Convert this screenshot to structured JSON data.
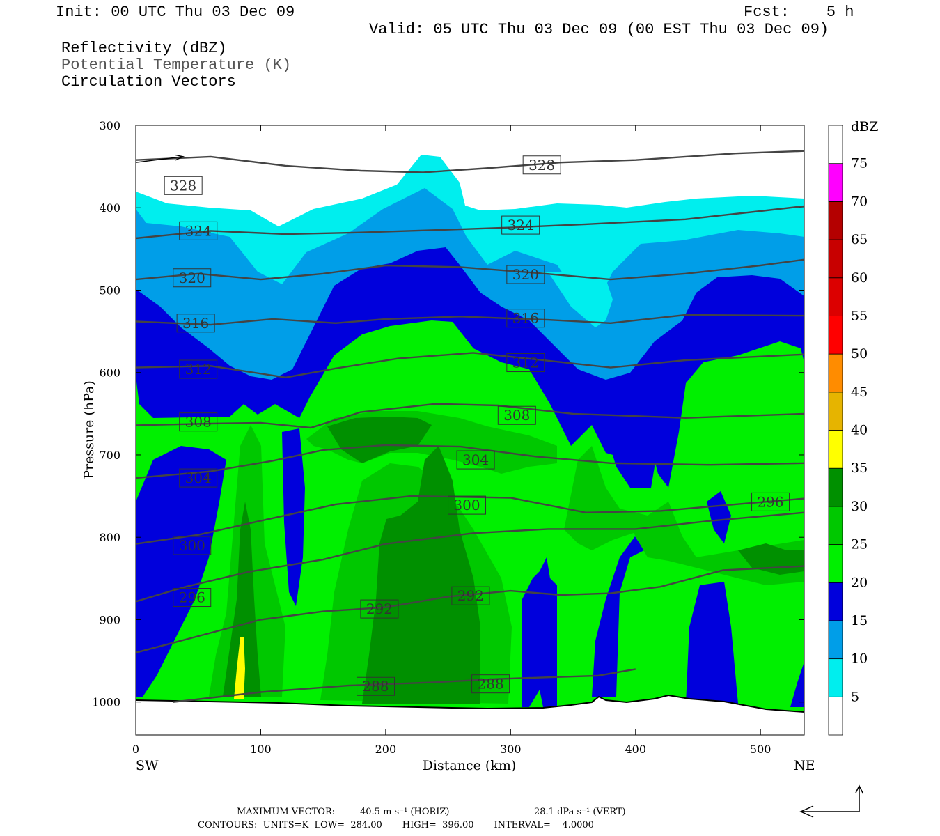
{
  "header": {
    "init": "Init: 00 UTC Thu 03 Dec 09",
    "fcst": "Fcst:    5 h",
    "valid": "Valid: 05 UTC Thu 03 Dec 09 (00 EST Thu 03 Dec 09)",
    "field1": "Reflectivity (dBZ)",
    "field2": "Potential Temperature (K)",
    "field3": "Circulation Vectors"
  },
  "footer": {
    "max_vector_label": "MAXIMUM VECTOR:",
    "max_horiz": "40.5 m s⁻¹ (HORIZ)",
    "max_vert": "28.1 dPa s⁻¹ (VERT)",
    "contours": "CONTOURS:  UNITS=K  LOW=  284.00       HIGH=  396.00       INTERVAL=    4.0000"
  },
  "colors": {
    "c5": "#00eeee",
    "c10": "#009ee8",
    "c15": "#0000dc",
    "c20": "#00f000",
    "c25": "#00c800",
    "c30": "#009000",
    "c35": "#ffff00",
    "c40": "#e6b400",
    "c45": "#ff8c00",
    "c50": "#ff0000",
    "c55": "#dc0000",
    "c60": "#c80000",
    "c65": "#b40000",
    "c70": "#ff00ff",
    "c75": "#9a50c8",
    "contour": "#444444"
  },
  "chart_data": {
    "type": "cross-section",
    "xlabel": "Distance (km)",
    "ylabel": "Pressure (hPa)",
    "xlim": [
      0,
      535
    ],
    "ylim": [
      1040,
      300
    ],
    "x_ticks": [
      "0",
      "100",
      "200",
      "300",
      "400",
      "500"
    ],
    "x_tick_values": [
      0,
      100,
      200,
      300,
      400,
      500
    ],
    "y_ticks": [
      "300",
      "400",
      "500",
      "600",
      "700",
      "800",
      "900",
      "1000"
    ],
    "y_tick_values": [
      300,
      400,
      500,
      600,
      700,
      800,
      900,
      1000
    ],
    "left_end_label": "SW",
    "right_end_label": "NE",
    "colorbar": {
      "unit_label": "dBZ",
      "levels": [
        "5",
        "10",
        "15",
        "20",
        "25",
        "30",
        "35",
        "40",
        "45",
        "50",
        "55",
        "60",
        "65",
        "70",
        "75"
      ]
    },
    "theta_contours": [
      {
        "label": "328",
        "label_pos": [
          [
            38,
            373
          ],
          [
            325,
            348
          ]
        ],
        "points": [
          [
            0,
            342
          ],
          [
            60,
            338
          ],
          [
            120,
            349
          ],
          [
            180,
            355
          ],
          [
            230,
            357
          ],
          [
            280,
            352
          ],
          [
            340,
            345
          ],
          [
            400,
            342
          ],
          [
            480,
            334
          ],
          [
            535,
            331
          ]
        ]
      },
      {
        "label": "324",
        "label_pos": [
          [
            50,
            428
          ],
          [
            308,
            421
          ]
        ],
        "points": [
          [
            0,
            437
          ],
          [
            60,
            428
          ],
          [
            120,
            432
          ],
          [
            180,
            430
          ],
          [
            240,
            427
          ],
          [
            300,
            424
          ],
          [
            360,
            420
          ],
          [
            440,
            414
          ],
          [
            500,
            404
          ],
          [
            535,
            398
          ]
        ]
      },
      {
        "label": "320",
        "label_pos": [
          [
            45,
            485
          ],
          [
            312,
            481
          ]
        ],
        "points": [
          [
            0,
            487
          ],
          [
            50,
            480
          ],
          [
            100,
            487
          ],
          [
            150,
            480
          ],
          [
            200,
            470
          ],
          [
            260,
            472
          ],
          [
            320,
            479
          ],
          [
            380,
            487
          ],
          [
            440,
            480
          ],
          [
            500,
            470
          ],
          [
            535,
            463
          ]
        ]
      },
      {
        "label": "316",
        "label_pos": [
          [
            48,
            540
          ],
          [
            312,
            534
          ]
        ],
        "points": [
          [
            0,
            538
          ],
          [
            60,
            542
          ],
          [
            110,
            535
          ],
          [
            160,
            540
          ],
          [
            200,
            535
          ],
          [
            260,
            532
          ],
          [
            330,
            536
          ],
          [
            380,
            540
          ],
          [
            440,
            530
          ],
          [
            535,
            531
          ]
        ]
      },
      {
        "label": "312",
        "label_pos": [
          [
            50,
            596
          ],
          [
            312,
            588
          ]
        ],
        "points": [
          [
            0,
            594
          ],
          [
            60,
            592
          ],
          [
            120,
            606
          ],
          [
            160,
            595
          ],
          [
            210,
            583
          ],
          [
            270,
            576
          ],
          [
            320,
            584
          ],
          [
            380,
            594
          ],
          [
            440,
            585
          ],
          [
            535,
            578
          ]
        ]
      },
      {
        "label": "308",
        "label_pos": [
          [
            50,
            660
          ],
          [
            305,
            652
          ]
        ],
        "points": [
          [
            0,
            664
          ],
          [
            60,
            662
          ],
          [
            100,
            661
          ],
          [
            140,
            667
          ],
          [
            180,
            648
          ],
          [
            240,
            638
          ],
          [
            290,
            640
          ],
          [
            350,
            650
          ],
          [
            440,
            655
          ],
          [
            535,
            650
          ]
        ]
      },
      {
        "label": "304",
        "label_pos": [
          [
            50,
            728
          ],
          [
            272,
            706
          ]
        ],
        "points": [
          [
            0,
            728
          ],
          [
            60,
            720
          ],
          [
            110,
            707
          ],
          [
            150,
            694
          ],
          [
            200,
            688
          ],
          [
            260,
            690
          ],
          [
            320,
            702
          ],
          [
            380,
            710
          ],
          [
            460,
            712
          ],
          [
            535,
            710
          ]
        ]
      },
      {
        "label": "300",
        "label_pos": [
          [
            45,
            810
          ],
          [
            265,
            761
          ]
        ],
        "points": [
          [
            0,
            808
          ],
          [
            50,
            797
          ],
          [
            100,
            780
          ],
          [
            160,
            760
          ],
          [
            220,
            750
          ],
          [
            300,
            752
          ],
          [
            360,
            770
          ],
          [
            420,
            768
          ],
          [
            480,
            760
          ],
          [
            535,
            753
          ]
        ]
      },
      {
        "label": "296",
        "label_pos": [
          [
            508,
            757
          ],
          [
            45,
            873
          ]
        ],
        "points": [
          [
            0,
            878
          ],
          [
            40,
            860
          ],
          [
            90,
            842
          ],
          [
            150,
            827
          ],
          [
            200,
            808
          ],
          [
            270,
            795
          ],
          [
            330,
            790
          ],
          [
            400,
            790
          ],
          [
            460,
            780
          ],
          [
            535,
            770
          ]
        ]
      },
      {
        "label": "292",
        "label_pos": [
          [
            195,
            887
          ],
          [
            268,
            871
          ]
        ],
        "points": [
          [
            0,
            940
          ],
          [
            50,
            920
          ],
          [
            100,
            900
          ],
          [
            150,
            890
          ],
          [
            200,
            885
          ],
          [
            250,
            872
          ],
          [
            300,
            865
          ],
          [
            340,
            870
          ],
          [
            380,
            868
          ],
          [
            420,
            860
          ],
          [
            470,
            840
          ],
          [
            535,
            835
          ]
        ]
      },
      {
        "label": "288",
        "label_pos": [
          [
            192,
            981
          ],
          [
            284,
            978
          ]
        ],
        "points": [
          [
            30,
            1000
          ],
          [
            100,
            988
          ],
          [
            170,
            980
          ],
          [
            240,
            976
          ],
          [
            290,
            972
          ],
          [
            330,
            970
          ],
          [
            370,
            968
          ],
          [
            400,
            960
          ]
        ]
      }
    ],
    "wind_vectors": [
      {
        "x": 0,
        "p": 345,
        "u": 8,
        "w": 1
      }
    ]
  }
}
